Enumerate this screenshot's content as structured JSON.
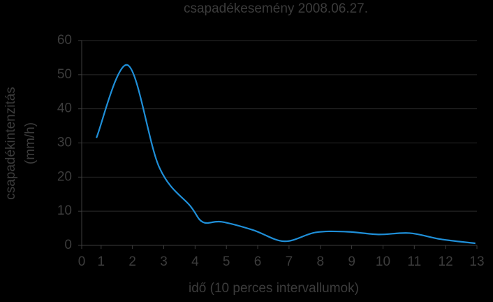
{
  "chart_data": {
    "type": "line",
    "title": "csapadékesemény 2008.06.27.",
    "x_label": "idő (10 perces intervallumok)",
    "y_label": [
      "csapadékintenzitás",
      "(mm/h)"
    ],
    "x": [
      0.85,
      1.85,
      2.85,
      3.85,
      4.25,
      4.85,
      5.85,
      6.85,
      7.85,
      8.85,
      9.85,
      10.85,
      11.85,
      12.95
    ],
    "series": [
      {
        "name": "csapadékintenzitás",
        "color": "#1f8fd8",
        "values": [
          31.5,
          52.8,
          23,
          11.5,
          6.8,
          6.9,
          4.5,
          1.2,
          3.8,
          4,
          3.2,
          3.6,
          1.8,
          0.6
        ]
      }
    ],
    "xlim": [
      0.38,
      13
    ],
    "xticks": [
      {
        "value": 0.38,
        "label": "0"
      },
      1,
      2,
      3,
      4,
      5,
      6,
      7,
      8,
      9,
      10,
      11,
      12,
      13
    ],
    "ylim": [
      0,
      60
    ],
    "yticks": [
      0,
      10,
      20,
      30,
      40,
      50,
      60
    ],
    "grid": true
  }
}
